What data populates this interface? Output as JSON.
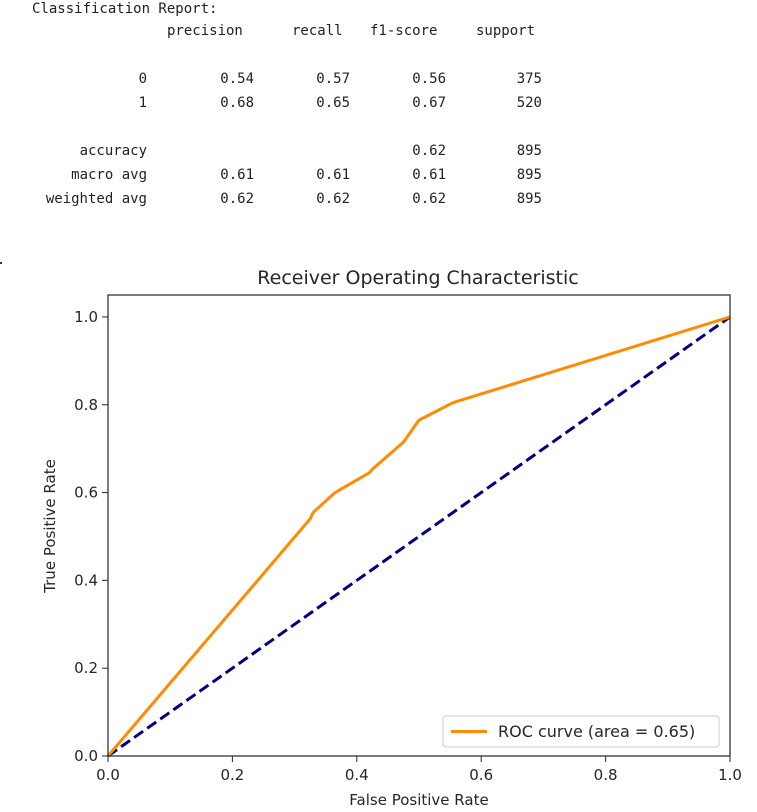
{
  "report": {
    "heading": "Classification Report:",
    "columns": [
      "precision",
      "recall",
      "f1-score",
      "support"
    ],
    "rows": [
      {
        "label": "0",
        "precision": "0.54",
        "recall": "0.57",
        "f1": "0.56",
        "support": "375"
      },
      {
        "label": "1",
        "precision": "0.68",
        "recall": "0.65",
        "f1": "0.67",
        "support": "520"
      },
      {
        "label": "accuracy",
        "precision": "",
        "recall": "",
        "f1": "0.62",
        "support": "895"
      },
      {
        "label": "macro avg",
        "precision": "0.61",
        "recall": "0.61",
        "f1": "0.61",
        "support": "895"
      },
      {
        "label": "weighted avg",
        "precision": "0.62",
        "recall": "0.62",
        "f1": "0.62",
        "support": "895"
      }
    ]
  },
  "chart_data": {
    "type": "line",
    "title": "Receiver Operating Characteristic",
    "xlabel": "False Positive Rate",
    "ylabel": "True Positive Rate",
    "xlim": [
      0.0,
      1.0
    ],
    "ylim": [
      0.0,
      1.05
    ],
    "xticks": [
      "0.0",
      "0.2",
      "0.4",
      "0.6",
      "0.8",
      "1.0"
    ],
    "yticks": [
      "0.0",
      "0.2",
      "0.4",
      "0.6",
      "0.8",
      "1.0"
    ],
    "grid": false,
    "legend_position": "lower-right",
    "series": [
      {
        "name": "ROC curve (area = 0.65)",
        "color": "#ff8c00",
        "style": "solid",
        "x": [
          0.0,
          0.325,
          0.33,
          0.365,
          0.42,
          0.425,
          0.475,
          0.5,
          0.555,
          1.0
        ],
        "y": [
          0.0,
          0.54,
          0.555,
          0.6,
          0.645,
          0.653,
          0.715,
          0.765,
          0.805,
          1.0
        ]
      },
      {
        "color": "#000080",
        "style": "dashed",
        "x": [
          0.0,
          1.0
        ],
        "y": [
          0.0,
          1.0
        ]
      }
    ]
  }
}
